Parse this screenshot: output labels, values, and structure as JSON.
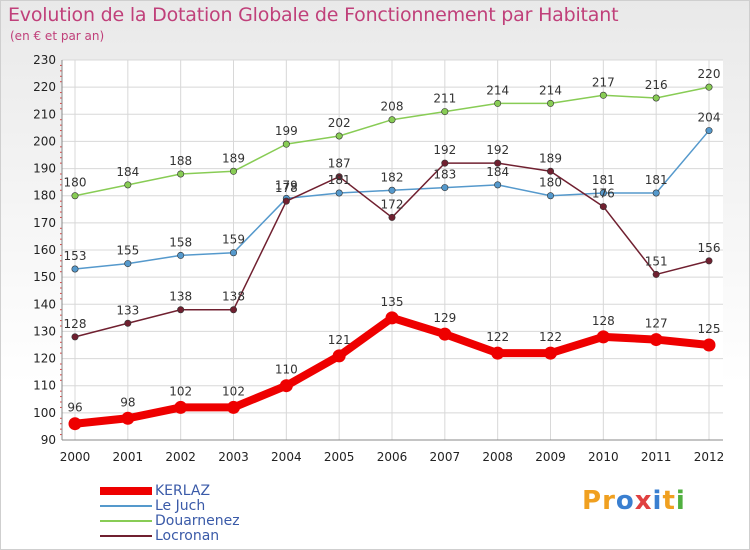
{
  "title": "Evolution de la Dotation Globale de Fonctionnement par Habitant",
  "subtitle": "(en € et par an)",
  "logo": {
    "text": "Proxiti",
    "letters": [
      "P",
      "r",
      "o",
      "x",
      "i",
      "t",
      "i"
    ],
    "colors": [
      "#f0a020",
      "#f0a020",
      "#3a7fd0",
      "#e04040",
      "#3a7fd0",
      "#f0a020",
      "#50b040"
    ]
  },
  "chart_data": {
    "type": "line",
    "title": "Evolution de la Dotation Globale de Fonctionnement par Habitant",
    "subtitle": "(en € et par an)",
    "xlabel": "",
    "ylabel": "",
    "x": [
      "2000",
      "2001",
      "2002",
      "2003",
      "2004",
      "2005",
      "2006",
      "2007",
      "2008",
      "2009",
      "2010",
      "2011",
      "2012"
    ],
    "ylim": [
      90,
      230
    ],
    "yticks": [
      90,
      100,
      110,
      120,
      130,
      140,
      150,
      160,
      170,
      180,
      190,
      200,
      210,
      220,
      230
    ],
    "grid": true,
    "legend_position": "bottom-left",
    "series": [
      {
        "name": "Douarnenez",
        "color": "#88cc55",
        "values": [
          180,
          184,
          188,
          189,
          199,
          202,
          208,
          211,
          214,
          214,
          217,
          216,
          220
        ]
      },
      {
        "name": "Le Juch",
        "color": "#5599cc",
        "values": [
          153,
          155,
          158,
          159,
          179,
          181,
          182,
          183,
          184,
          180,
          181,
          181,
          204
        ]
      },
      {
        "name": "Locronan",
        "color": "#702030",
        "values": [
          128,
          133,
          138,
          138,
          178,
          187,
          172,
          192,
          192,
          189,
          176,
          151,
          156
        ]
      },
      {
        "name": "KERLAZ",
        "color": "#ee0000",
        "values": [
          96,
          98,
          102,
          102,
          110,
          121,
          135,
          129,
          122,
          122,
          128,
          127,
          125
        ]
      }
    ],
    "data_labels": [
      {
        "series": "Douarnenez",
        "labels": [
          "180",
          "184",
          "188",
          "189",
          "199",
          "202",
          "208",
          "211",
          "214",
          "214",
          "217",
          "216",
          "220"
        ]
      },
      {
        "series": "Le Juch",
        "labels": [
          "153",
          "155",
          "158",
          "159",
          "179",
          "181",
          "182",
          "183",
          "184",
          "180",
          "181",
          "181",
          "204"
        ]
      },
      {
        "series": "Locronan",
        "labels": [
          "128",
          "133",
          "138",
          "138",
          "178",
          "187",
          "172",
          "192",
          "192",
          "189",
          "176",
          "151",
          "156"
        ]
      },
      {
        "series": "KERLAZ",
        "labels": [
          "96",
          "98",
          "102",
          "102",
          "110",
          "121",
          "135",
          "129",
          "122",
          "122",
          "128",
          "127",
          "125"
        ]
      }
    ]
  },
  "legend": [
    {
      "label": "KERLAZ",
      "color": "#ee0000",
      "thick": true
    },
    {
      "label": "Le Juch",
      "color": "#5599cc",
      "thick": false
    },
    {
      "label": "Douarnenez",
      "color": "#88cc55",
      "thick": false
    },
    {
      "label": "Locronan",
      "color": "#702030",
      "thick": false
    }
  ]
}
